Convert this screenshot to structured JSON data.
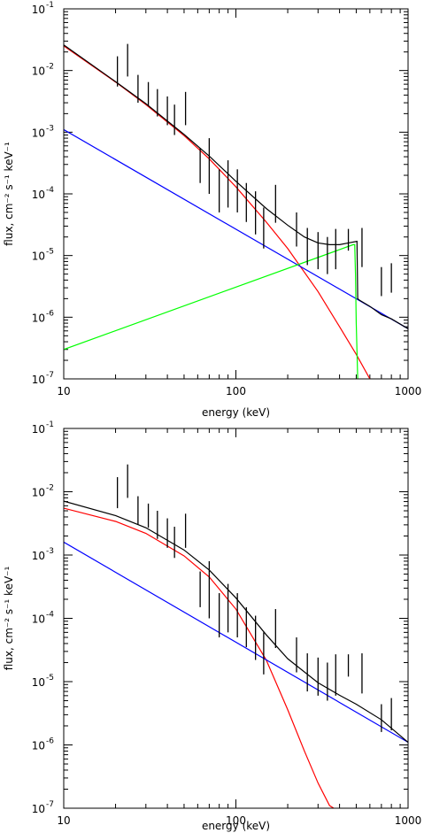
{
  "chart_data": [
    {
      "type": "line",
      "xlabel": "energy (keV)",
      "ylabel": "flux, cm⁻² s⁻¹ keV⁻¹",
      "xscale": "log",
      "yscale": "log",
      "xlim": [
        10,
        1000
      ],
      "ylim": [
        1e-07,
        0.1
      ],
      "xticks": [
        {
          "v": 10,
          "label": "10"
        },
        {
          "v": 100,
          "label": "100"
        },
        {
          "v": 1000,
          "label": "1000"
        }
      ],
      "yticks": [
        {
          "v": 1e-07,
          "base": "10",
          "exp": "-7"
        },
        {
          "v": 1e-06,
          "base": "10",
          "exp": "-6"
        },
        {
          "v": 1e-05,
          "base": "10",
          "exp": "-5"
        },
        {
          "v": 0.0001,
          "base": "10",
          "exp": "-4"
        },
        {
          "v": 0.001,
          "base": "10",
          "exp": "-3"
        },
        {
          "v": 0.01,
          "base": "10",
          "exp": "-2"
        },
        {
          "v": 0.1,
          "base": "10",
          "exp": "-1"
        }
      ],
      "grid": false,
      "data_points": [
        {
          "x": 20.5,
          "ylo": 0.0055,
          "yhi": 0.017
        },
        {
          "x": 23.5,
          "ylo": 0.008,
          "yhi": 0.027
        },
        {
          "x": 27,
          "ylo": 0.003,
          "yhi": 0.0085
        },
        {
          "x": 31,
          "ylo": 0.0027,
          "yhi": 0.0065
        },
        {
          "x": 35,
          "ylo": 0.0018,
          "yhi": 0.005
        },
        {
          "x": 40,
          "ylo": 0.0013,
          "yhi": 0.0038
        },
        {
          "x": 44,
          "ylo": 0.0009,
          "yhi": 0.0028
        },
        {
          "x": 51,
          "ylo": 0.0013,
          "yhi": 0.0045
        },
        {
          "x": 62,
          "ylo": 0.00015,
          "yhi": 0.00055
        },
        {
          "x": 70,
          "ylo": 0.0001,
          "yhi": 0.0008
        },
        {
          "x": 80,
          "ylo": 5e-05,
          "yhi": 0.00025
        },
        {
          "x": 90,
          "ylo": 6e-05,
          "yhi": 0.00035
        },
        {
          "x": 102,
          "ylo": 5e-05,
          "yhi": 0.00025
        },
        {
          "x": 115,
          "ylo": 3.5e-05,
          "yhi": 0.00015
        },
        {
          "x": 130,
          "ylo": 2.2e-05,
          "yhi": 0.00011
        },
        {
          "x": 145,
          "ylo": 1.3e-05,
          "yhi": 6e-05
        },
        {
          "x": 170,
          "ylo": 3.4e-05,
          "yhi": 0.00014
        },
        {
          "x": 225,
          "ylo": 1.4e-05,
          "yhi": 5e-05
        },
        {
          "x": 260,
          "ylo": 7e-06,
          "yhi": 2.8e-05
        },
        {
          "x": 300,
          "ylo": 6e-06,
          "yhi": 2.4e-05
        },
        {
          "x": 340,
          "ylo": 5e-06,
          "yhi": 2e-05
        },
        {
          "x": 380,
          "ylo": 6e-06,
          "yhi": 2.7e-05
        },
        {
          "x": 450,
          "ylo": 1.2e-05,
          "yhi": 2.7e-05
        },
        {
          "x": 540,
          "ylo": 6.5e-06,
          "yhi": 2.8e-05
        },
        {
          "x": 700,
          "ylo": 2.2e-06,
          "yhi": 6.5e-06
        },
        {
          "x": 800,
          "ylo": 2.5e-06,
          "yhi": 7.5e-06
        }
      ],
      "series": [
        {
          "color": "#ff0000",
          "x": [
            10,
            20,
            30,
            50,
            70,
            100,
            150,
            200,
            300,
            400,
            500,
            600
          ],
          "y": [
            0.025,
            0.0065,
            0.0028,
            0.00088,
            0.00037,
            0.00013,
            3.5e-05,
            1.3e-05,
            2.6e-06,
            7e-07,
            2.5e-07,
            1e-07
          ]
        },
        {
          "color": "#0000ff",
          "x": [
            10,
            1000
          ],
          "y": [
            0.0011,
            6.5e-07
          ]
        },
        {
          "color": "#00ff00",
          "x": [
            10,
            480,
            490,
            495,
            500,
            510
          ],
          "y": [
            3e-07,
            1.5e-05,
            1.5e-05,
            5e-06,
            8e-07,
            1e-07
          ]
        },
        {
          "color": "#000000",
          "x": [
            10,
            20,
            30,
            50,
            70,
            100,
            150,
            200,
            250,
            300,
            350,
            400,
            450,
            505,
            510,
            520,
            600,
            700,
            800,
            1000
          ],
          "y": [
            0.026,
            0.0066,
            0.0029,
            0.00092,
            0.00041,
            0.00016,
            5.8e-05,
            3.1e-05,
            2e-05,
            1.6e-05,
            1.5e-05,
            1.5e-05,
            1.6e-05,
            1.7e-05,
            2e-06,
            1.9e-06,
            1.5e-06,
            1.1e-06,
            9.4e-07,
            6.5e-07
          ]
        }
      ]
    },
    {
      "type": "line",
      "xlabel": "energy (keV)",
      "ylabel": "flux, cm⁻² s⁻¹ keV⁻¹",
      "xscale": "log",
      "yscale": "log",
      "xlim": [
        10,
        1000
      ],
      "ylim": [
        1e-07,
        0.1
      ],
      "xticks": [
        {
          "v": 10,
          "label": "10"
        },
        {
          "v": 100,
          "label": "100"
        },
        {
          "v": 1000,
          "label": "1000"
        }
      ],
      "yticks": [
        {
          "v": 1e-07,
          "base": "10",
          "exp": "-7"
        },
        {
          "v": 1e-06,
          "base": "10",
          "exp": "-6"
        },
        {
          "v": 1e-05,
          "base": "10",
          "exp": "-5"
        },
        {
          "v": 0.0001,
          "base": "10",
          "exp": "-4"
        },
        {
          "v": 0.001,
          "base": "10",
          "exp": "-3"
        },
        {
          "v": 0.01,
          "base": "10",
          "exp": "-2"
        },
        {
          "v": 0.1,
          "base": "10",
          "exp": "-1"
        }
      ],
      "grid": false,
      "data_points": [
        {
          "x": 20.5,
          "ylo": 0.0055,
          "yhi": 0.017
        },
        {
          "x": 23.5,
          "ylo": 0.008,
          "yhi": 0.027
        },
        {
          "x": 27,
          "ylo": 0.003,
          "yhi": 0.0085
        },
        {
          "x": 31,
          "ylo": 0.0027,
          "yhi": 0.0065
        },
        {
          "x": 35,
          "ylo": 0.0018,
          "yhi": 0.005
        },
        {
          "x": 40,
          "ylo": 0.0013,
          "yhi": 0.0038
        },
        {
          "x": 44,
          "ylo": 0.0009,
          "yhi": 0.0028
        },
        {
          "x": 51,
          "ylo": 0.0013,
          "yhi": 0.0045
        },
        {
          "x": 62,
          "ylo": 0.00015,
          "yhi": 0.00055
        },
        {
          "x": 70,
          "ylo": 0.0001,
          "yhi": 0.0008
        },
        {
          "x": 80,
          "ylo": 5e-05,
          "yhi": 0.00025
        },
        {
          "x": 90,
          "ylo": 6e-05,
          "yhi": 0.00035
        },
        {
          "x": 102,
          "ylo": 5e-05,
          "yhi": 0.00025
        },
        {
          "x": 115,
          "ylo": 3.5e-05,
          "yhi": 0.00015
        },
        {
          "x": 130,
          "ylo": 2.2e-05,
          "yhi": 0.00011
        },
        {
          "x": 145,
          "ylo": 1.3e-05,
          "yhi": 6e-05
        },
        {
          "x": 170,
          "ylo": 3.4e-05,
          "yhi": 0.00014
        },
        {
          "x": 225,
          "ylo": 1.4e-05,
          "yhi": 5e-05
        },
        {
          "x": 260,
          "ylo": 7e-06,
          "yhi": 2.8e-05
        },
        {
          "x": 300,
          "ylo": 6e-06,
          "yhi": 2.4e-05
        },
        {
          "x": 340,
          "ylo": 5e-06,
          "yhi": 2e-05
        },
        {
          "x": 380,
          "ylo": 6e-06,
          "yhi": 2.7e-05
        },
        {
          "x": 450,
          "ylo": 1.2e-05,
          "yhi": 2.7e-05
        },
        {
          "x": 540,
          "ylo": 6.5e-06,
          "yhi": 2.8e-05
        },
        {
          "x": 700,
          "ylo": 1.6e-06,
          "yhi": 4.4e-06
        },
        {
          "x": 800,
          "ylo": 1.7e-06,
          "yhi": 5.5e-06
        }
      ],
      "series": [
        {
          "color": "#ff0000",
          "x": [
            10,
            20,
            30,
            50,
            70,
            100,
            150,
            200,
            250,
            300,
            350,
            370
          ],
          "y": [
            0.0055,
            0.0034,
            0.0022,
            0.00097,
            0.00045,
            0.00014,
            2.2e-05,
            3.6e-06,
            8e-07,
            2.5e-07,
            1.1e-07,
            1e-07
          ]
        },
        {
          "color": "#0000ff",
          "x": [
            10,
            1000
          ],
          "y": [
            0.0016,
            1.1e-06
          ]
        },
        {
          "color": "#000000",
          "x": [
            10,
            20,
            30,
            50,
            70,
            100,
            150,
            200,
            300,
            400,
            500,
            700,
            1000
          ],
          "y": [
            0.0071,
            0.0042,
            0.0027,
            0.0012,
            0.00058,
            0.00021,
            5.5e-05,
            2.3e-05,
            9.6e-06,
            6.1e-06,
            4.4e-06,
            2.5e-06,
            1.1e-06
          ]
        }
      ]
    }
  ]
}
